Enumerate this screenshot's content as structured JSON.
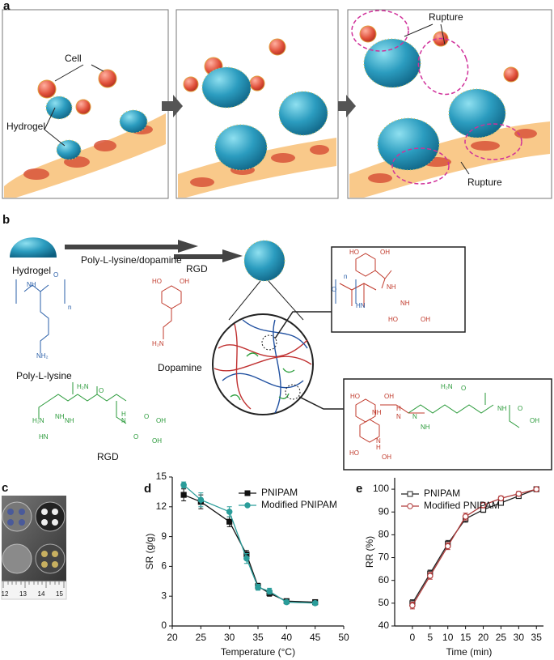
{
  "panel_a": {
    "label": "a",
    "cell": "Cell",
    "hydrogel": "Hydrogel",
    "rupture_top": "Rupture",
    "rupture_bottom": "Rupture"
  },
  "panel_b": {
    "label": "b",
    "hydrogel": "Hydrogel",
    "step1": "Poly-L-lysine/dopamine",
    "step2": "RGD",
    "polylysine": {
      "name": "Poly-L-lysine",
      "atoms": [
        "NH",
        "O",
        "n",
        "NH₂"
      ]
    },
    "dopamine": {
      "name": "Dopamine",
      "atoms": [
        "HO",
        "OH",
        "H₂N"
      ]
    },
    "rgd": {
      "name": "RGD",
      "atoms": [
        "H₂N",
        "O",
        "H",
        "N",
        "NH",
        "O",
        "OH",
        "HN",
        "H₂N",
        "NH",
        "O",
        "OH"
      ]
    },
    "box1": {
      "atoms": [
        "HO",
        "OH",
        "n",
        "O",
        "HN",
        "NH",
        "NH",
        "HO",
        "OH"
      ]
    },
    "box2": {
      "atoms": [
        "H₂N",
        "O",
        "HO",
        "OH",
        "NH",
        "H",
        "N",
        "N",
        "NH",
        "OH",
        "O",
        "N",
        "H",
        "HO",
        "OH",
        "NH"
      ]
    }
  },
  "panel_c": {
    "label": "c",
    "ruler": [
      "12",
      "13",
      "14",
      "15"
    ]
  },
  "chart_data": [
    {
      "type": "line",
      "label": "d",
      "x_label": "Temperature (°C)",
      "y_label": "SR (g/g)",
      "x": [
        22,
        25,
        30,
        33,
        35,
        37,
        40,
        45
      ],
      "series": [
        {
          "name": "PNIPAM",
          "color": "#111111",
          "marker": "square",
          "filled": true,
          "values": [
            13.2,
            12.5,
            10.5,
            7.2,
            4.0,
            3.3,
            2.5,
            2.4
          ],
          "errors": [
            0.6,
            0.7,
            0.5,
            0.4,
            0.3,
            0.3,
            0.2,
            0.2
          ]
        },
        {
          "name": "Modified PNIPAM",
          "color": "#2a9d9a",
          "marker": "circle",
          "filled": true,
          "values": [
            14.2,
            12.7,
            11.5,
            6.8,
            3.9,
            3.5,
            2.4,
            2.3
          ],
          "errors": [
            0.3,
            0.7,
            0.5,
            0.5,
            0.3,
            0.3,
            0.2,
            0.2
          ]
        }
      ],
      "xlim": [
        20,
        50
      ],
      "xticks": [
        20,
        25,
        30,
        35,
        40,
        45,
        50
      ],
      "ylim": [
        0,
        15
      ],
      "yticks": [
        0,
        3,
        6,
        9,
        12,
        15
      ],
      "legend": "upper right"
    },
    {
      "type": "line",
      "label": "e",
      "x_label": "Time (min)",
      "y_label": "RR (%)",
      "x": [
        0,
        5,
        10,
        15,
        20,
        25,
        30,
        35
      ],
      "series": [
        {
          "name": "PNIPAM",
          "color": "#222222",
          "marker": "square",
          "filled": false,
          "values": [
            50,
            63,
            76,
            87,
            91,
            94,
            97,
            100
          ],
          "errors": [
            1.5,
            1.5,
            1.5,
            1.5,
            1.2,
            1.0,
            1.0,
            0.8
          ]
        },
        {
          "name": "Modified PNIPAM",
          "color": "#b03a3a",
          "marker": "circle",
          "filled": false,
          "values": [
            49,
            62,
            75,
            88,
            93,
            96,
            98,
            100
          ],
          "errors": [
            1.5,
            1.5,
            1.5,
            1.5,
            1.2,
            1.0,
            1.0,
            0.8
          ]
        }
      ],
      "xlim": [
        -5,
        37
      ],
      "xticks": [
        0,
        5,
        10,
        15,
        20,
        25,
        30,
        35
      ],
      "ylim": [
        40,
        105
      ],
      "yticks": [
        40,
        50,
        60,
        70,
        80,
        90,
        100
      ],
      "legend": "upper left"
    }
  ]
}
